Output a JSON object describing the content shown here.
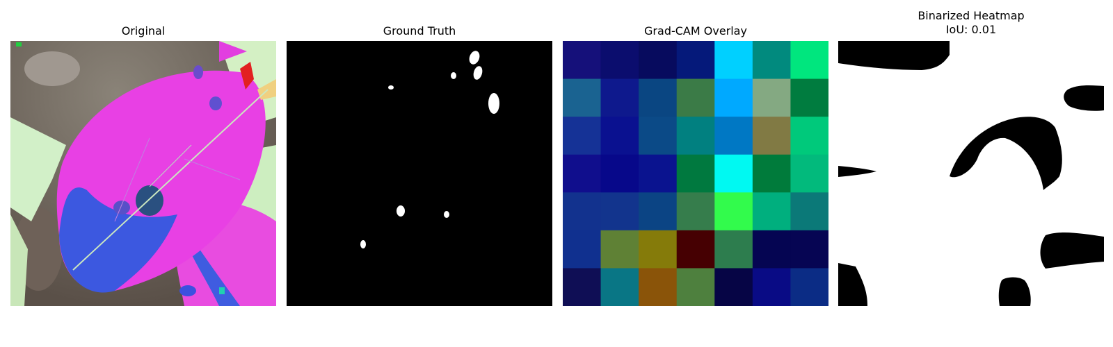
{
  "panels": {
    "original": {
      "title": "Original"
    },
    "ground_truth": {
      "title": "Ground Truth"
    },
    "gradcam": {
      "title": "Grad-CAM Overlay",
      "grid_colors": [
        [
          "#15107a",
          "#0b0d6e",
          "#070b5e",
          "#05197a",
          "#00d0ff",
          "#018a7e",
          "#00e67e"
        ],
        [
          "#1a6391",
          "#0e198d",
          "#0a4682",
          "#3b7b47",
          "#00a9ff",
          "#84a982",
          "#007c3f"
        ],
        [
          "#153296",
          "#0a1190",
          "#0b4a87",
          "#018080",
          "#0078c4",
          "#817a44",
          "#00c97b"
        ],
        [
          "#100e8d",
          "#07088a",
          "#0a138f",
          "#00793f",
          "#00f9f2",
          "#007b3b",
          "#02ba7c"
        ],
        [
          "#12328e",
          "#12348d",
          "#0b4484",
          "#367d4c",
          "#32fb4c",
          "#00af7e",
          "#0b7978"
        ],
        [
          "#10308f",
          "#5f8135",
          "#857b0a",
          "#460002",
          "#2d7d4e",
          "#050552",
          "#060553"
        ],
        [
          "#0f0e55",
          "#097685",
          "#8a5409",
          "#4e803e",
          "#060545",
          "#090b85",
          "#0b2c85"
        ]
      ]
    },
    "binarized": {
      "title": "Binarized Heatmap\nIoU: 0.01"
    }
  }
}
